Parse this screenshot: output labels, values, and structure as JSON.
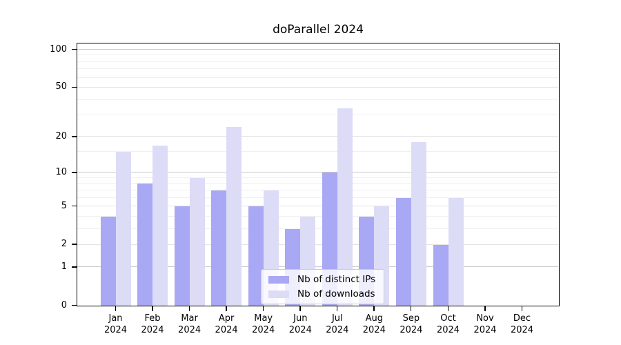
{
  "chart_data": {
    "type": "bar",
    "title": "doParallel 2024",
    "categories": [
      "Jan",
      "Feb",
      "Mar",
      "Apr",
      "May",
      "Jun",
      "Jul",
      "Aug",
      "Sep",
      "Oct",
      "Nov",
      "Dec"
    ],
    "year_label": "2024",
    "series": [
      {
        "name": "Nb of distinct IPs",
        "color": "#a8a8f4",
        "values": [
          4,
          8,
          5,
          7,
          5,
          3,
          10,
          4,
          6,
          2,
          0,
          0
        ]
      },
      {
        "name": "Nb of downloads",
        "color": "#dcdcf7",
        "values": [
          15,
          17,
          9,
          24,
          7,
          4,
          34,
          5,
          18,
          6,
          0,
          0
        ]
      }
    ],
    "yscale": "log1p",
    "ylim": [
      0,
      100
    ],
    "yticks": [
      0,
      1,
      2,
      5,
      10,
      20,
      50,
      100
    ],
    "minor_gridlines": [
      3,
      4,
      6,
      7,
      8,
      9,
      15,
      30,
      40,
      60,
      70,
      80,
      90
    ],
    "grid": "horizontal",
    "legend_position": "bottom-center",
    "axis_color": "#000000",
    "gridline_major_color": "#c9c9c9",
    "gridline_minor_color": "#f0f0f0"
  }
}
